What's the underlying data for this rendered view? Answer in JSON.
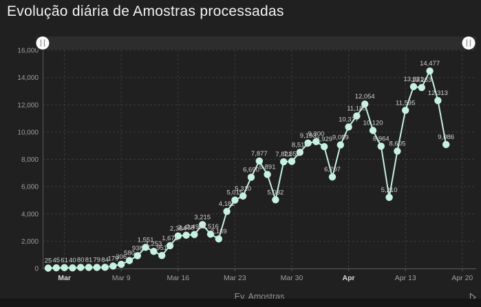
{
  "title": "Evolução diária de Amostras processadas",
  "legend": {
    "label": "Ev. Amostras"
  },
  "colors": {
    "background": "#202020",
    "footer": "#151515",
    "accent": "#c6f2e2",
    "grid": "#3c3c3c",
    "axis": "#5c5c5c",
    "point_label": "#d2d2d2",
    "tick_label": "#9f9f9f",
    "tick_label_bold": "#dcdcdc",
    "scrollbar_track": "#2d2d2d",
    "scrollbar_handle": "#fbfbfb",
    "scrollbar_grip": "#8a8a8a",
    "pager_icon": "#999999"
  },
  "scrollbar": {
    "left_handle": "range-start-grip",
    "right_handle": "range-end-grip"
  },
  "chart_data": {
    "type": "line",
    "title": "Evolução diária de Amostras processadas",
    "legend_position": "bottom",
    "grid": "dashed",
    "point_labels": true,
    "series": [
      {
        "name": "Ev. Amostras",
        "color": "#c6f2e2",
        "values": [
          25,
          45,
          61,
          40,
          80,
          81,
          79,
          84,
          179,
          306,
          580,
          938,
          1551,
          1253,
          951,
          1671,
          2384,
          2438,
          2490,
          3215,
          2516,
          2169,
          4182,
          5015,
          5310,
          6690,
          7877,
          6891,
          5032,
          7821,
          7853,
          8516,
          9193,
          9300,
          8929,
          6707,
          9059,
          10377,
          11185,
          12054,
          10120,
          8964,
          5210,
          8605,
          11595,
          13331,
          13263,
          14477,
          12313,
          9086
        ]
      }
    ],
    "y_axis": {
      "min": 0,
      "max": 16000,
      "tick_step": 2000,
      "tick_labels": [
        "0",
        "2,000",
        "4,000",
        "6,000",
        "8,000",
        "10,000",
        "12,000",
        "14,000",
        "16,000"
      ]
    },
    "x_axis": {
      "ticks": [
        {
          "at": 2,
          "label": "Mar",
          "bold": true
        },
        {
          "at": 9,
          "label": "Mar 9",
          "bold": false
        },
        {
          "at": 16,
          "label": "Mar 16",
          "bold": false
        },
        {
          "at": 23,
          "label": "Mar 23",
          "bold": false
        },
        {
          "at": 30,
          "label": "Mar 30",
          "bold": false
        },
        {
          "at": 37,
          "label": "Apr",
          "bold": true
        },
        {
          "at": 44,
          "label": "Apr 13",
          "bold": false
        },
        {
          "at": 51,
          "label": "Apr 20",
          "bold": false
        }
      ]
    }
  }
}
